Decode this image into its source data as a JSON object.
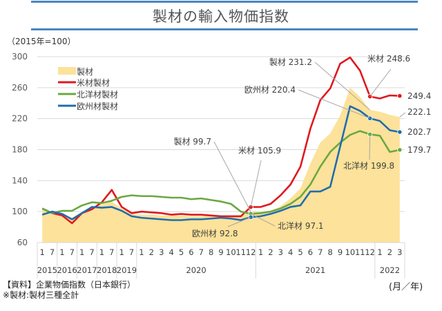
{
  "title": "製材の輸入物価指数",
  "unit_label": "（2015年=100）",
  "footer": {
    "source": "【資料】企業物価指数（日本銀行）",
    "note": "※製材:製材三種全計",
    "axis_unit": "(月／年)"
  },
  "chart_data": {
    "type": "line",
    "title": "製材の輸入物価指数",
    "ylabel": "（2015年=100）",
    "xlabel": "(月／年)",
    "ylim": [
      60,
      300
    ],
    "yticks": [
      60,
      100,
      140,
      180,
      220,
      260,
      300
    ],
    "grid": true,
    "legend_position": "top-left",
    "months": [
      "1",
      "7",
      "1",
      "7",
      "1",
      "7",
      "1",
      "7",
      "1",
      "7",
      "1",
      "2",
      "3",
      "4",
      "5",
      "6",
      "7",
      "8",
      "9",
      "10",
      "11",
      "12",
      "1",
      "2",
      "3",
      "4",
      "5",
      "6",
      "7",
      "8",
      "9",
      "10",
      "11",
      "12",
      "1",
      "2",
      "3"
    ],
    "years": [
      {
        "label": "2015",
        "span": 2
      },
      {
        "label": "2016",
        "span": 2
      },
      {
        "label": "2017",
        "span": 2
      },
      {
        "label": "2018",
        "span": 2
      },
      {
        "label": "2019",
        "span": 2
      },
      {
        "label": "2020",
        "span": 12
      },
      {
        "label": "2021",
        "span": 12
      },
      {
        "label": "2022",
        "span": 3
      }
    ],
    "series": [
      {
        "name": "製材",
        "kind": "area",
        "color": "#FCE29A",
        "values": [
          103,
          100,
          97,
          92,
          100,
          106,
          109,
          113,
          104,
          97,
          96,
          96,
          95,
          95,
          95,
          94,
          94,
          94,
          94,
          94,
          94,
          99.7,
          100,
          101,
          107,
          117,
          130,
          162,
          189,
          201,
          224,
          260,
          248,
          231.2,
          229,
          225,
          222.1
        ]
      },
      {
        "name": "米材製材",
        "kind": "line",
        "color": "#E0191E",
        "values": [
          104,
          98,
          95,
          85,
          98,
          103,
          112,
          128,
          106,
          98,
          100,
          99,
          98,
          96,
          97,
          96,
          96,
          95,
          94,
          94,
          94,
          105.9,
          106,
          110,
          121,
          135,
          158,
          207,
          244,
          259,
          291,
          299,
          282,
          248.6,
          246,
          250,
          249.4
        ]
      },
      {
        "name": "北洋材製材",
        "kind": "line",
        "color": "#6AA842",
        "values": [
          104,
          98,
          101,
          101,
          108,
          112,
          111,
          114,
          119,
          121,
          120,
          120,
          119,
          118,
          118,
          116,
          117,
          115,
          113,
          110,
          100,
          97.1,
          98,
          100,
          104,
          110,
          119,
          135,
          158,
          177,
          189,
          199,
          204,
          199.8,
          198,
          177,
          179.7
        ]
      },
      {
        "name": "欧州材製材",
        "kind": "line",
        "color": "#1F6DB0",
        "values": [
          96,
          100,
          97,
          90,
          98,
          106,
          105,
          106,
          101,
          94,
          92,
          91,
          90,
          89,
          89,
          90,
          90,
          91,
          92,
          91,
          89,
          92.8,
          94,
          97,
          101,
          106,
          108,
          126,
          126,
          132,
          184,
          236,
          230,
          220.4,
          217,
          205,
          202.7
        ]
      }
    ],
    "annotations": [
      {
        "series": "製材",
        "label": "製材 99.7",
        "index": 21
      },
      {
        "series": "米材製材",
        "label": "米材 105.9",
        "index": 21
      },
      {
        "series": "欧州材製材",
        "label": "欧州材 92.8",
        "index": 21
      },
      {
        "series": "北洋材製材",
        "label": "北洋材 97.1",
        "index": 21
      },
      {
        "series": "製材",
        "label": "製材 231.2",
        "index": 33
      },
      {
        "series": "米材製材",
        "label": "米材 248.6",
        "index": 33
      },
      {
        "series": "欧州材製材",
        "label": "欧州材 220.4",
        "index": 33
      },
      {
        "series": "北洋材製材",
        "label": "北洋材 199.8",
        "index": 33
      },
      {
        "series": "米材製材",
        "label": "249.4",
        "index": 36
      },
      {
        "series": "製材",
        "label": "222.1",
        "index": 36
      },
      {
        "series": "欧州材製材",
        "label": "202.7",
        "index": 36
      },
      {
        "series": "北洋材製材",
        "label": "179.7",
        "index": 36
      }
    ]
  }
}
